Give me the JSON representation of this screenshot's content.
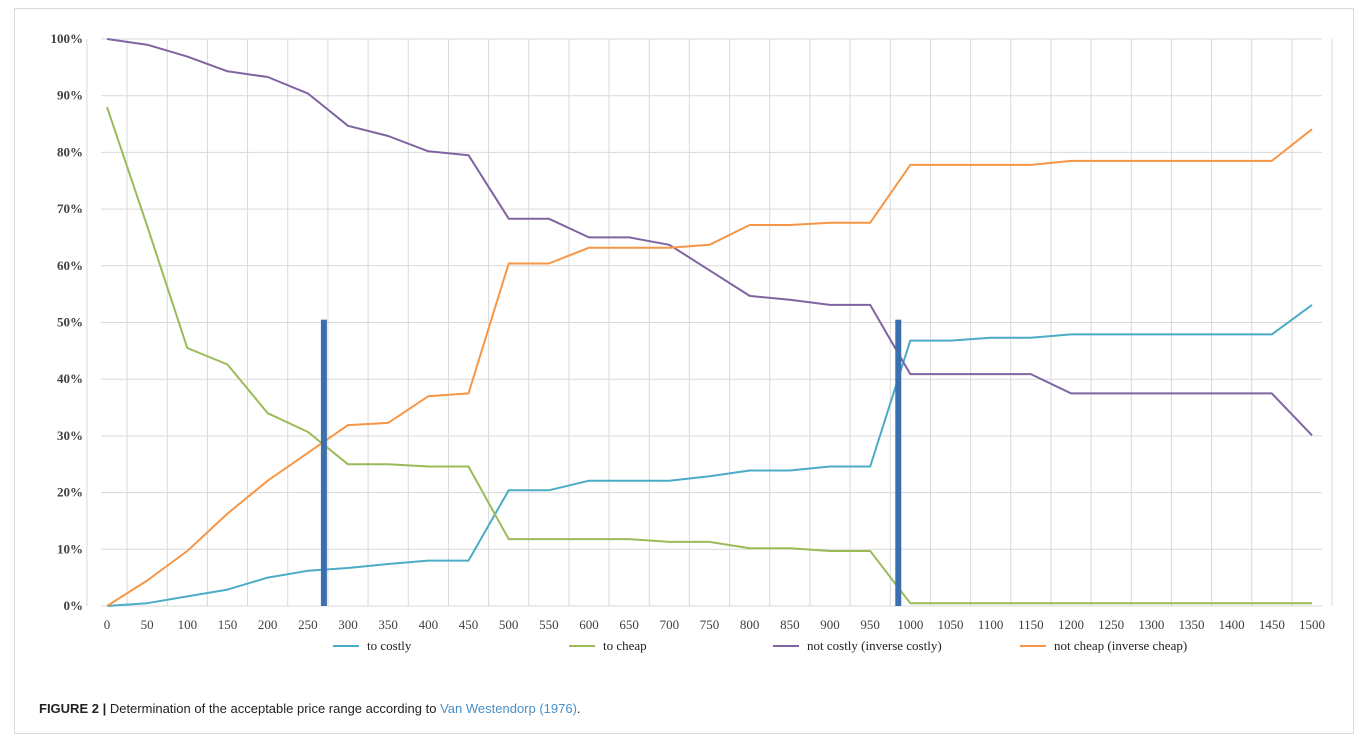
{
  "caption": {
    "label": "FIGURE 2 |",
    "text": "Determination of the acceptable price range according to",
    "reference": "Van Westendorp (1976)",
    "end": "."
  },
  "colors": {
    "to_costly": "#4BACC6",
    "to_cheap": "#9BBB59",
    "not_costly": "#8064A2",
    "not_cheap": "#F79646",
    "marker": "#3C6FAE",
    "grid": "#d9d9d9"
  },
  "chart_data": {
    "type": "line",
    "title": "",
    "xlabel": "",
    "ylabel": "",
    "x": [
      0,
      50,
      100,
      150,
      200,
      250,
      300,
      350,
      400,
      450,
      500,
      550,
      600,
      650,
      700,
      750,
      800,
      850,
      900,
      950,
      1000,
      1050,
      1100,
      1150,
      1200,
      1250,
      1300,
      1350,
      1400,
      1450,
      1500
    ],
    "ylim": [
      0,
      100
    ],
    "yticks": [
      "0%",
      "10%",
      "20%",
      "30%",
      "40%",
      "50%",
      "60%",
      "70%",
      "80%",
      "90%",
      "100%"
    ],
    "grid": true,
    "legend_position": "bottom",
    "series": [
      {
        "name": "to costly",
        "color": "#4BACC6",
        "values": [
          0,
          0.5,
          1.7,
          2.9,
          5,
          6.2,
          6.7,
          7.4,
          8,
          8,
          20.4,
          20.4,
          22.1,
          22.1,
          22.1,
          22.9,
          23.9,
          23.9,
          24.6,
          24.6,
          46.8,
          46.8,
          47.3,
          47.3,
          47.9,
          47.9,
          47.9,
          47.9,
          47.9,
          47.9,
          53.1
        ]
      },
      {
        "name": "to cheap",
        "color": "#9BBB59",
        "values": [
          88,
          67,
          45.5,
          42.6,
          34,
          30.7,
          25,
          25,
          24.6,
          24.6,
          11.8,
          11.8,
          11.8,
          11.8,
          11.3,
          11.3,
          10.2,
          10.2,
          9.7,
          9.7,
          0.5,
          0.5,
          0.5,
          0.5,
          0.5,
          0.5,
          0.5,
          0.5,
          0.5,
          0.5,
          0.5
        ]
      },
      {
        "name": "not costly (inverse costly)",
        "color": "#8064A2",
        "values": [
          100,
          99,
          96.9,
          94.3,
          93.3,
          90.4,
          84.7,
          82.9,
          80.2,
          79.5,
          68.3,
          68.3,
          65,
          65,
          63.7,
          59.2,
          54.7,
          54,
          53.1,
          53.1,
          40.9,
          40.9,
          40.9,
          40.9,
          37.5,
          37.5,
          37.5,
          37.5,
          37.5,
          37.5,
          30.1
        ]
      },
      {
        "name": "not cheap (inverse cheap)",
        "color": "#F79646",
        "values": [
          0,
          4.5,
          9.7,
          16.3,
          22.1,
          27,
          31.9,
          32.3,
          37,
          37.5,
          60.4,
          60.4,
          63.2,
          63.2,
          63.2,
          63.7,
          67.2,
          67.2,
          67.6,
          67.6,
          77.8,
          77.8,
          77.8,
          77.8,
          78.5,
          78.5,
          78.5,
          78.5,
          78.5,
          78.5,
          84.1
        ]
      }
    ],
    "markers": [
      {
        "x": 270,
        "y_top": 50.5,
        "color": "#3C6FAE"
      },
      {
        "x": 985,
        "y_top": 50.5,
        "color": "#3C6FAE"
      }
    ]
  }
}
